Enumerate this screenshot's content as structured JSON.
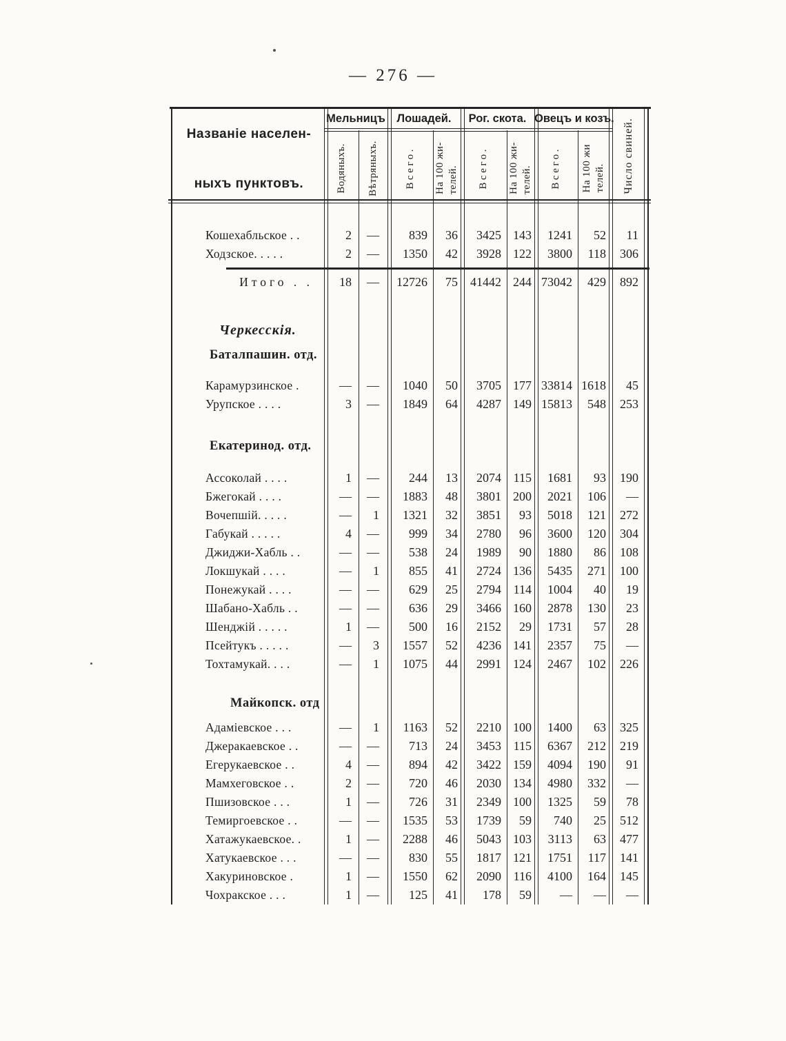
{
  "page": {
    "number": "— 276 —"
  },
  "colors": {
    "ink": "#1f1f1f",
    "paper": "#fcfbf8",
    "rule": "#242424"
  },
  "table": {
    "header": {
      "name_lines": [
        "Названіе населен-",
        "ныхъ пунктовъ."
      ],
      "groups": [
        {
          "label": "Мельницъ",
          "sub": [
            "Водяныхъ.",
            "Вѣтряныхъ."
          ]
        },
        {
          "label": "Лошадей.",
          "sub": [
            "Всего.",
            "На 100 жи-\nтелей."
          ]
        },
        {
          "label": "Рог. скота.",
          "sub": [
            "Всего.",
            "На 100 жи-\nтелей."
          ]
        },
        {
          "label": "Овецъ и козъ.",
          "sub": [
            "Всего.",
            "На 100 жи\nтелей."
          ]
        }
      ],
      "pigs": "Число свиней."
    },
    "rows": [
      {
        "type": "data",
        "label": "Кошехабльское . .",
        "values": [
          "2",
          "—",
          "839",
          "36",
          "3425",
          "143",
          "1241",
          "52",
          "11"
        ],
        "mt": 32
      },
      {
        "type": "data",
        "label": "Ходзское. . . . .",
        "values": [
          "2",
          "—",
          "1350",
          "42",
          "3928",
          "122",
          "3800",
          "118",
          "306"
        ]
      },
      {
        "type": "total",
        "label": "Итого . .",
        "values": [
          "18",
          "—",
          "12726",
          "75",
          "41442",
          "244",
          "73042",
          "429",
          "892"
        ],
        "mt": 14
      },
      {
        "type": "section-italic",
        "label": "Черкесскія.",
        "mt": 41
      },
      {
        "type": "section-bold",
        "label": "Баталпашин. отд.",
        "mt": 6
      },
      {
        "type": "data",
        "label": "Карамурзинское .",
        "values": [
          "—",
          "—",
          "1040",
          "50",
          "3705",
          "177",
          "33814",
          "1618",
          "45"
        ],
        "mt": 16
      },
      {
        "type": "data",
        "label": "Урупское  . . . .",
        "values": [
          "3",
          "—",
          "1849",
          "64",
          "4287",
          "149",
          "15813",
          "548",
          "253"
        ]
      },
      {
        "type": "section-bold",
        "label": "Екатеринод. отд.",
        "mt": 32
      },
      {
        "type": "data",
        "label": "Ассоколай . . . .",
        "values": [
          "1",
          "—",
          "244",
          "13",
          "2074",
          "115",
          "1681",
          "93",
          "190"
        ],
        "mt": 18
      },
      {
        "type": "data",
        "label": "Бжегокай  . . . .",
        "values": [
          "—",
          "—",
          "1883",
          "48",
          "3801",
          "200",
          "2021",
          "106",
          "—"
        ]
      },
      {
        "type": "data",
        "label": "Вочепшій. . . . .",
        "values": [
          "—",
          "1",
          "1321",
          "32",
          "3851",
          "93",
          "5018",
          "121",
          "272"
        ]
      },
      {
        "type": "data",
        "label": "Габукай . . . . .",
        "values": [
          "4",
          "—",
          "999",
          "34",
          "2780",
          "96",
          "3600",
          "120",
          "304"
        ]
      },
      {
        "type": "data",
        "label": "Джиджи-Хабль . .",
        "values": [
          "—",
          "—",
          "538",
          "24",
          "1989",
          "90",
          "1880",
          "86",
          "108"
        ]
      },
      {
        "type": "data",
        "label": "Локшукай  . . . .",
        "values": [
          "—",
          "1",
          "855",
          "41",
          "2724",
          "136",
          "5435",
          "271",
          "100"
        ]
      },
      {
        "type": "data",
        "label": "Понежукай . . . .",
        "values": [
          "—",
          "—",
          "629",
          "25",
          "2794",
          "114",
          "1004",
          "40",
          "19"
        ]
      },
      {
        "type": "data",
        "label": "Шабано-Хабль . .",
        "values": [
          "—",
          "—",
          "636",
          "29",
          "3466",
          "160",
          "2878",
          "130",
          "23"
        ]
      },
      {
        "type": "data",
        "label": "Шенджій . . . . .",
        "values": [
          "1",
          "—",
          "500",
          "16",
          "2152",
          "29",
          "1731",
          "57",
          "28"
        ]
      },
      {
        "type": "data",
        "label": "Псейтукъ . . . . .",
        "values": [
          "—",
          "3",
          "1557",
          "52",
          "4236",
          "141",
          "2357",
          "75",
          "—"
        ]
      },
      {
        "type": "data",
        "label": "Тохтамукай. . . .",
        "values": [
          "—",
          "1",
          "1075",
          "44",
          "2991",
          "124",
          "2467",
          "102",
          "226"
        ]
      },
      {
        "type": "section-bold",
        "label": "Майкопск. отд",
        "mt": 28,
        "indent": true
      },
      {
        "type": "data",
        "label": "Адаміевское  . . .",
        "values": [
          "—",
          "1",
          "1163",
          "52",
          "2210",
          "100",
          "1400",
          "63",
          "325"
        ],
        "mt": 7
      },
      {
        "type": "data",
        "label": "Джеракаевское . .",
        "values": [
          "—",
          "—",
          "713",
          "24",
          "3453",
          "115",
          "6367",
          "212",
          "219"
        ]
      },
      {
        "type": "data",
        "label": "Егерукаевское  . .",
        "values": [
          "4",
          "—",
          "894",
          "42",
          "3422",
          "159",
          "4094",
          "190",
          "91"
        ]
      },
      {
        "type": "data",
        "label": "Мамхеговское  . .",
        "values": [
          "2",
          "—",
          "720",
          "46",
          "2030",
          "134",
          "4980",
          "332",
          "—"
        ]
      },
      {
        "type": "data",
        "label": "Пшизовское  . . .",
        "values": [
          "1",
          "—",
          "726",
          "31",
          "2349",
          "100",
          "1325",
          "59",
          "78"
        ]
      },
      {
        "type": "data",
        "label": "Темиргоевское . .",
        "values": [
          "—",
          "—",
          "1535",
          "53",
          "1739",
          "59",
          "740",
          "25",
          "512"
        ]
      },
      {
        "type": "data",
        "label": "Хатажукаевское. .",
        "values": [
          "1",
          "—",
          "2288",
          "46",
          "5043",
          "103",
          "3113",
          "63",
          "477"
        ]
      },
      {
        "type": "data",
        "label": "Хатукаевское . . .",
        "values": [
          "—",
          "—",
          "830",
          "55",
          "1817",
          "121",
          "1751",
          "117",
          "141"
        ]
      },
      {
        "type": "data",
        "label": "Хакуриновское .",
        "values": [
          "1",
          "—",
          "1550",
          "62",
          "2090",
          "116",
          "4100",
          "164",
          "145"
        ]
      },
      {
        "type": "data",
        "label": "Чохракское  . . .",
        "values": [
          "1",
          "—",
          "125",
          "41",
          "178",
          "59",
          "—",
          "—",
          "—"
        ]
      }
    ]
  }
}
